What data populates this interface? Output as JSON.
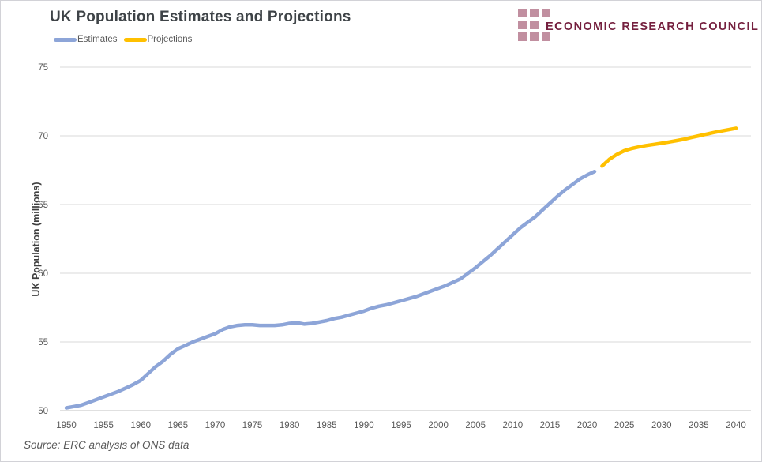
{
  "header": {
    "title": "UK Population Estimates and Projections",
    "logo_text": "ECONOMIC RESEARCH COUNCIL"
  },
  "legend": [
    {
      "label": "Estimates",
      "color": "#8da5d8"
    },
    {
      "label": "Projections",
      "color": "#ffc000"
    }
  ],
  "footer": {
    "source": "Source: ERC analysis of ONS data"
  },
  "colors": {
    "estimates_line": "#8da5d8",
    "projections_line": "#ffc000",
    "gridline": "#d9d9d9",
    "axis_line": "#c1c1c1",
    "tick_label": "#595959",
    "logo_square": "#c18fa0",
    "logo_text": "#75203f"
  },
  "chart_data": {
    "type": "line",
    "title": "UK Population Estimates and Projections",
    "xlabel": "",
    "ylabel": "UK Population (millions)",
    "xlim": [
      1950,
      2040
    ],
    "ylim": [
      50,
      75
    ],
    "x_ticks": [
      1950,
      1955,
      1960,
      1965,
      1970,
      1975,
      1980,
      1985,
      1990,
      1995,
      2000,
      2005,
      2010,
      2015,
      2020,
      2025,
      2030,
      2035,
      2040
    ],
    "y_ticks": [
      50,
      55,
      60,
      65,
      70,
      75
    ],
    "grid": "horizontal",
    "legend_position": "top-left",
    "series": [
      {
        "name": "Estimates",
        "color": "#8da5d8",
        "x": [
          1950,
          1951,
          1952,
          1953,
          1954,
          1955,
          1956,
          1957,
          1958,
          1959,
          1960,
          1961,
          1962,
          1963,
          1964,
          1965,
          1966,
          1967,
          1968,
          1969,
          1970,
          1971,
          1972,
          1973,
          1974,
          1975,
          1976,
          1977,
          1978,
          1979,
          1980,
          1981,
          1982,
          1983,
          1984,
          1985,
          1986,
          1987,
          1988,
          1989,
          1990,
          1991,
          1992,
          1993,
          1994,
          1995,
          1996,
          1997,
          1998,
          1999,
          2000,
          2001,
          2002,
          2003,
          2004,
          2005,
          2006,
          2007,
          2008,
          2009,
          2010,
          2011,
          2012,
          2013,
          2014,
          2015,
          2016,
          2017,
          2018,
          2019,
          2020,
          2021
        ],
        "y": [
          50.2,
          50.3,
          50.4,
          50.6,
          50.8,
          51.0,
          51.2,
          51.4,
          51.65,
          51.9,
          52.2,
          52.7,
          53.2,
          53.6,
          54.1,
          54.5,
          54.75,
          55.0,
          55.2,
          55.4,
          55.6,
          55.9,
          56.1,
          56.2,
          56.25,
          56.25,
          56.2,
          56.2,
          56.2,
          56.25,
          56.35,
          56.4,
          56.3,
          56.35,
          56.45,
          56.55,
          56.7,
          56.8,
          56.95,
          57.1,
          57.25,
          57.45,
          57.6,
          57.7,
          57.85,
          58.0,
          58.15,
          58.3,
          58.5,
          58.7,
          58.9,
          59.1,
          59.35,
          59.6,
          60.0,
          60.4,
          60.85,
          61.3,
          61.8,
          62.3,
          62.8,
          63.3,
          63.7,
          64.1,
          64.6,
          65.1,
          65.6,
          66.05,
          66.45,
          66.85,
          67.15,
          67.4
        ]
      },
      {
        "name": "Projections",
        "color": "#ffc000",
        "x": [
          2022,
          2023,
          2024,
          2025,
          2026,
          2027,
          2028,
          2029,
          2030,
          2031,
          2032,
          2033,
          2034,
          2035,
          2036,
          2037,
          2038,
          2039,
          2040
        ],
        "y": [
          67.8,
          68.3,
          68.65,
          68.92,
          69.08,
          69.2,
          69.3,
          69.38,
          69.46,
          69.55,
          69.65,
          69.75,
          69.88,
          70.0,
          70.12,
          70.24,
          70.35,
          70.45,
          70.55
        ]
      }
    ]
  }
}
